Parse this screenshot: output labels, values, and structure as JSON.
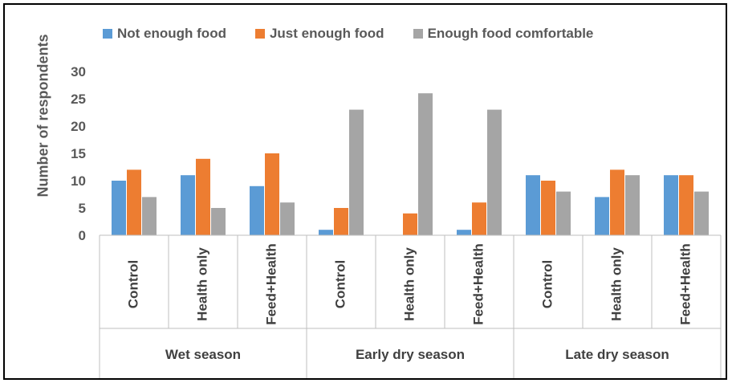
{
  "chart_data": {
    "type": "bar",
    "ylabel": "Number of respondents",
    "ylim": [
      0,
      30
    ],
    "yticks": [
      0,
      5,
      10,
      15,
      20,
      25,
      30
    ],
    "grid": false,
    "legend_position": "top",
    "groups": [
      {
        "name": "Wet season",
        "categories": [
          "Control",
          "Health only",
          "Feed+Health"
        ]
      },
      {
        "name": "Early dry season",
        "categories": [
          "Control",
          "Health only",
          "Feed+Health"
        ]
      },
      {
        "name": "Late dry season",
        "categories": [
          "Control",
          "Health only",
          "Feed+Health"
        ]
      }
    ],
    "series": [
      {
        "name": "Not enough food",
        "color": "#5B9BD5",
        "values": [
          10,
          11,
          9,
          1,
          0,
          1,
          11,
          7,
          11
        ]
      },
      {
        "name": "Just enough food",
        "color": "#ED7D31",
        "values": [
          12,
          14,
          15,
          5,
          4,
          6,
          10,
          12,
          11
        ]
      },
      {
        "name": "Enough food comfortable",
        "color": "#A5A5A5",
        "values": [
          7,
          5,
          6,
          23,
          26,
          23,
          8,
          11,
          8
        ]
      }
    ]
  }
}
